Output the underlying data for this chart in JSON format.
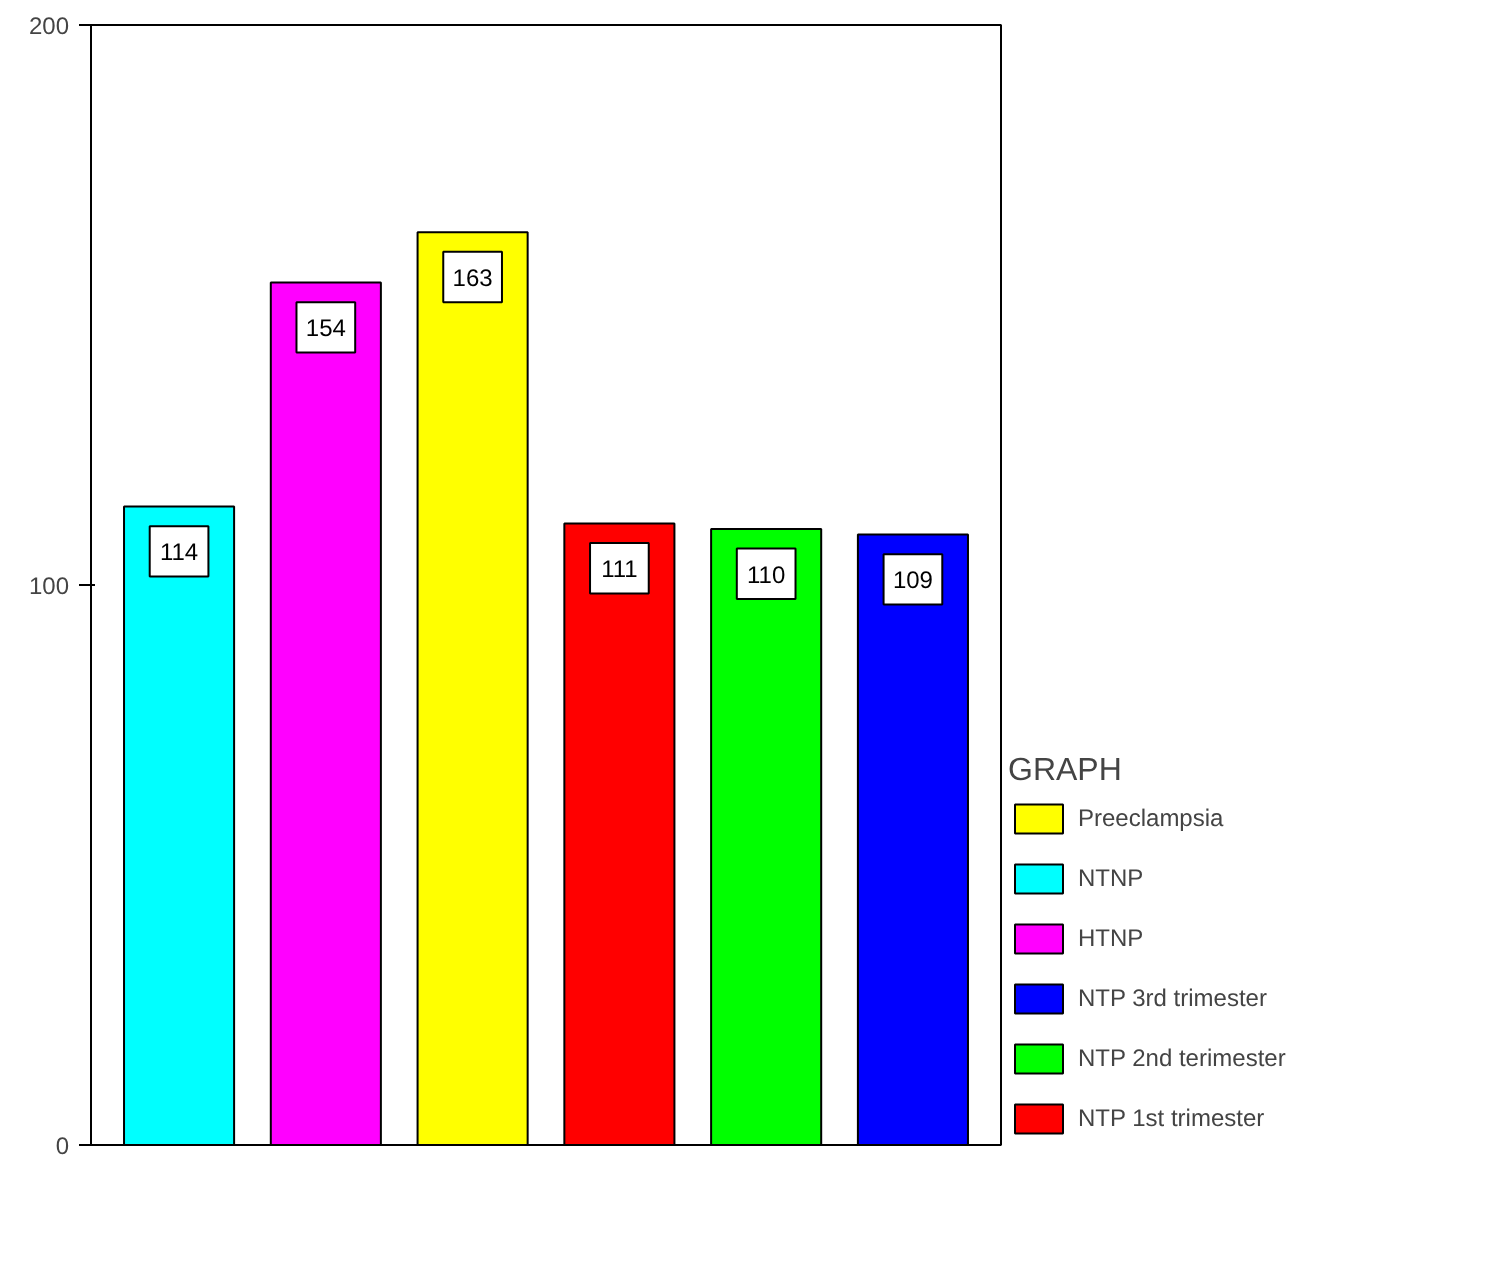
{
  "chart_data": {
    "type": "bar",
    "legend_title": "GRAPH",
    "categories": [
      null,
      null,
      null,
      null,
      null,
      null
    ],
    "series": [
      {
        "name": "Preeclampsia",
        "color": "#ffff00",
        "values": [
          null,
          null,
          163,
          null,
          null,
          null
        ]
      },
      {
        "name": "NTNP",
        "color": "#00ffff",
        "values": [
          114,
          null,
          null,
          null,
          null,
          null
        ]
      },
      {
        "name": "HTNP",
        "color": "#ff00ff",
        "values": [
          null,
          154,
          null,
          null,
          null,
          null
        ]
      },
      {
        "name": "NTP 3rd trimester",
        "color": "#0000ff",
        "values": [
          null,
          null,
          null,
          null,
          null,
          109
        ]
      },
      {
        "name": "NTP 2nd terimester",
        "color": "#00ff00",
        "values": [
          null,
          null,
          null,
          null,
          110,
          null
        ]
      },
      {
        "name": "NTP 1st trimester",
        "color": "#ff0000",
        "values": [
          null,
          null,
          null,
          111,
          null,
          null
        ]
      }
    ],
    "ylim": [
      0,
      200
    ],
    "yticks": [
      0,
      100,
      200
    ],
    "grid": false,
    "stacked": true,
    "legend": "right",
    "data_labels": true
  }
}
